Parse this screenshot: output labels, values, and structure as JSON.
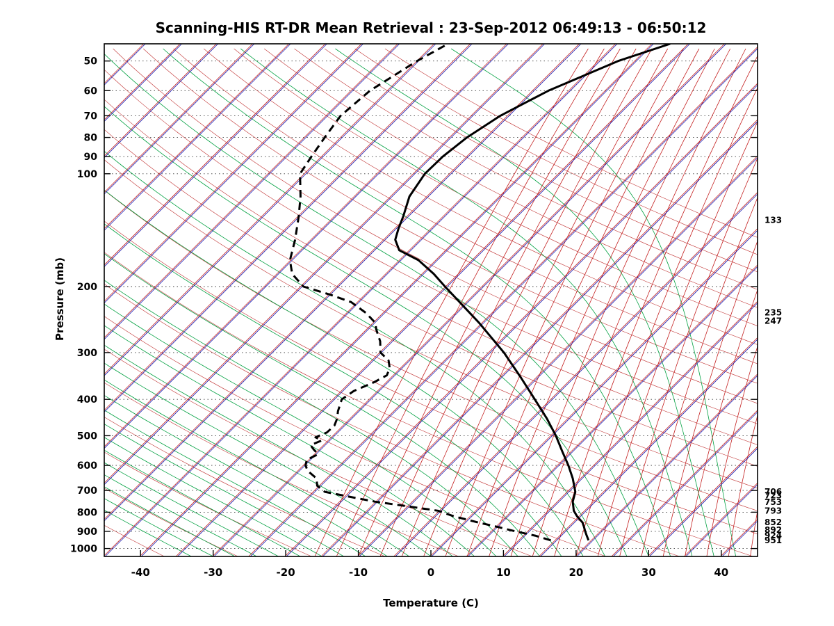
{
  "title": "Scanning-HIS RT-DR Mean Retrieval : 23-Sep-2012 06:49:13 - 06:50:12",
  "x_axis": {
    "label": "Temperature (C)",
    "ticks": [
      -40,
      -30,
      -20,
      -10,
      0,
      10,
      20,
      30,
      40
    ]
  },
  "y_axis": {
    "label": "Pressure (mb)",
    "ticks": [
      50,
      60,
      70,
      80,
      90,
      100,
      200,
      300,
      400,
      500,
      600,
      700,
      800,
      900,
      1000
    ]
  },
  "right_level_labels": [
    133,
    235,
    247,
    706,
    723,
    753,
    793,
    852,
    892,
    924,
    951
  ],
  "colors": {
    "isotherm_blue": "#1515b0",
    "isotherm_red": "#c42020",
    "dry_adiabat_red": "#c03030",
    "moist_adiabat_green": "#00a040",
    "mixing_ratio_red": "#c42020",
    "gridline": "#3a3a3a",
    "profile": "#000000",
    "frame": "#000000",
    "background": "#ffffff"
  },
  "chart_data": {
    "type": "line",
    "subtype": "skew-t-log-p",
    "title": "Scanning-HIS RT-DR Mean Retrieval : 23-Sep-2012 06:49:13 - 06:50:12",
    "xlabel": "Temperature (C)",
    "ylabel": "Pressure (mb)",
    "t_range_c": [
      -45,
      45
    ],
    "p_range_mb": [
      45,
      1050
    ],
    "skew_c_per_ln_p": 22.4,
    "grid": "dotted-horizontal",
    "legend": "none",
    "background_lines": {
      "isotherms_c": {
        "from": -110,
        "to": 45,
        "step": 5
      },
      "dry_adiabats_theta_c": {
        "from": -60,
        "to": 200,
        "step": 10
      },
      "moist_adiabats_start_c": {
        "from": -33,
        "to": 42,
        "step": 3
      },
      "mixing_ratio_start_c": {
        "from": -16,
        "to": 44,
        "step": 3
      }
    },
    "series": [
      {
        "name": "temperature",
        "line": "solid",
        "color": "#000000",
        "points_p_t": [
          [
            951,
            19.5
          ],
          [
            924,
            18.6
          ],
          [
            900,
            17.8
          ],
          [
            875,
            17.0
          ],
          [
            852,
            16.2
          ],
          [
            820,
            14.6
          ],
          [
            793,
            13.4
          ],
          [
            750,
            12.0
          ],
          [
            706,
            11.0
          ],
          [
            650,
            8.8
          ],
          [
            600,
            6.4
          ],
          [
            550,
            3.6
          ],
          [
            500,
            0.6
          ],
          [
            450,
            -3.0
          ],
          [
            400,
            -7.3
          ],
          [
            350,
            -12.2
          ],
          [
            300,
            -18.0
          ],
          [
            250,
            -25.5
          ],
          [
            200,
            -35.2
          ],
          [
            185,
            -38.5
          ],
          [
            170,
            -42.5
          ],
          [
            160,
            -46.5
          ],
          [
            150,
            -48.5
          ],
          [
            140,
            -49.6
          ],
          [
            130,
            -50.6
          ],
          [
            115,
            -52.5
          ],
          [
            100,
            -53.5
          ],
          [
            90,
            -53.4
          ],
          [
            80,
            -52.7
          ],
          [
            70,
            -51.1
          ],
          [
            60,
            -47.9
          ],
          [
            50,
            -42.4
          ],
          [
            45,
            -37.6
          ]
        ]
      },
      {
        "name": "dewpoint",
        "line": "dashed",
        "color": "#000000",
        "points_p_t": [
          [
            951,
            14.3
          ],
          [
            924,
            11.5
          ],
          [
            900,
            8.2
          ],
          [
            875,
            5.0
          ],
          [
            852,
            1.8
          ],
          [
            820,
            -2.4
          ],
          [
            793,
            -5.3
          ],
          [
            770,
            -10.5
          ],
          [
            750,
            -15.2
          ],
          [
            730,
            -19.0
          ],
          [
            706,
            -23.5
          ],
          [
            680,
            -25.4
          ],
          [
            650,
            -26.5
          ],
          [
            620,
            -28.8
          ],
          [
            600,
            -29.8
          ],
          [
            580,
            -30.4
          ],
          [
            560,
            -29.6
          ],
          [
            545,
            -30.8
          ],
          [
            530,
            -31.9
          ],
          [
            515,
            -31.0
          ],
          [
            505,
            -32.3
          ],
          [
            490,
            -31.4
          ],
          [
            470,
            -31.3
          ],
          [
            450,
            -31.9
          ],
          [
            430,
            -32.8
          ],
          [
            400,
            -33.9
          ],
          [
            380,
            -33.4
          ],
          [
            360,
            -31.8
          ],
          [
            345,
            -31.0
          ],
          [
            330,
            -31.6
          ],
          [
            315,
            -32.8
          ],
          [
            300,
            -35.0
          ],
          [
            280,
            -36.6
          ],
          [
            260,
            -38.8
          ],
          [
            250,
            -39.8
          ],
          [
            235,
            -42.5
          ],
          [
            220,
            -46.0
          ],
          [
            210,
            -50.0
          ],
          [
            200,
            -54.7
          ],
          [
            185,
            -58.0
          ],
          [
            170,
            -60.2
          ],
          [
            150,
            -62.3
          ],
          [
            130,
            -65.0
          ],
          [
            115,
            -67.5
          ],
          [
            100,
            -70.7
          ],
          [
            90,
            -71.5
          ],
          [
            80,
            -72.3
          ],
          [
            70,
            -73.1
          ],
          [
            60,
            -72.5
          ],
          [
            50,
            -70.1
          ],
          [
            45,
            -68.2
          ]
        ]
      }
    ]
  }
}
